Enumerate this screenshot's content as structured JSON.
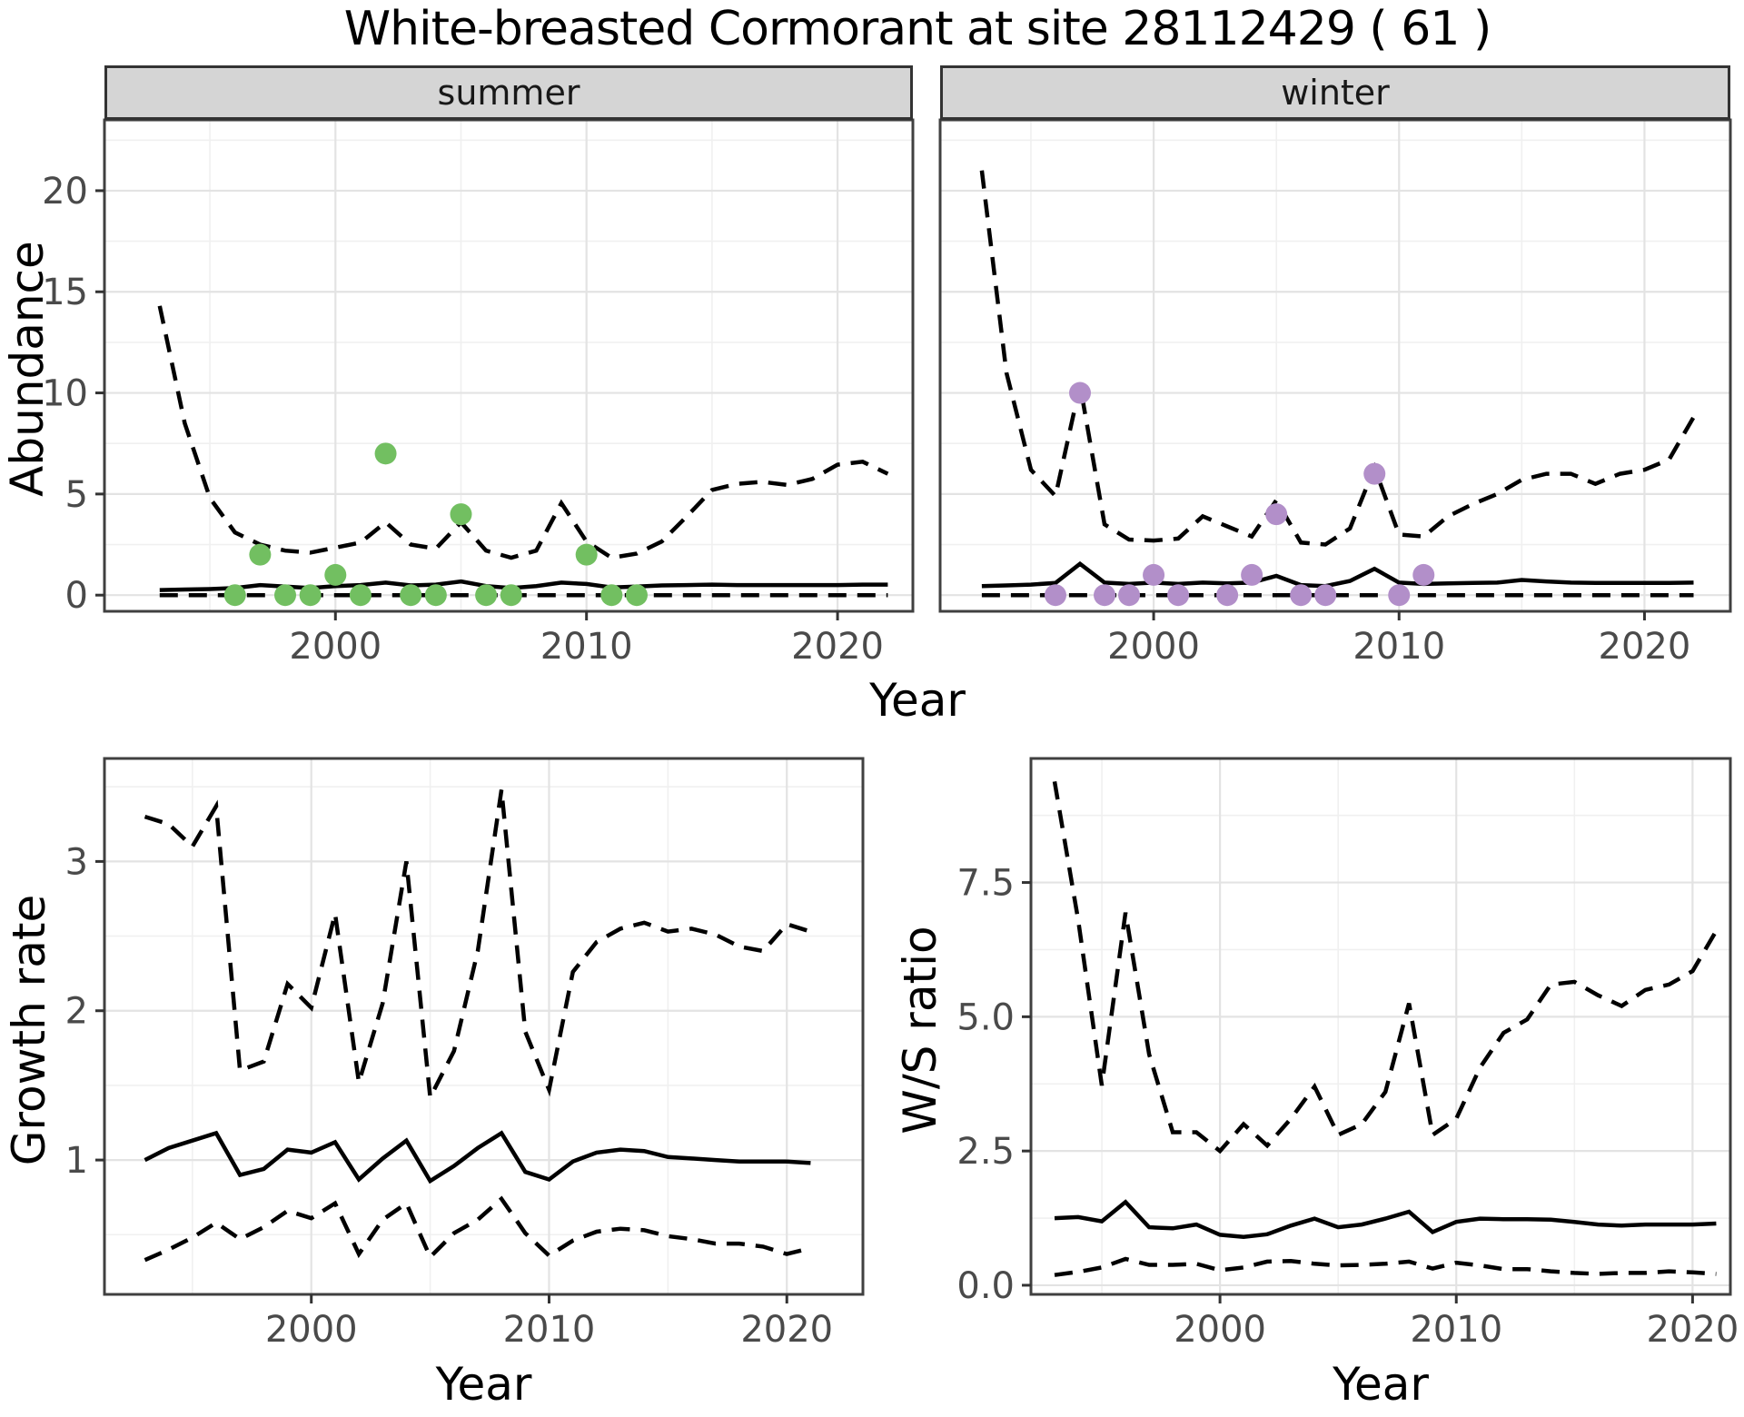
{
  "title": "White-breasted Cormorant at site 28112429 ( 61 )",
  "facets": {
    "summer": "summer",
    "winter": "winter"
  },
  "axes": {
    "top_y_label": "Abundance",
    "top_x_label": "Year",
    "bottom_left_y_label": "Growth rate",
    "bottom_left_x_label": "Year",
    "bottom_right_y_label": "W/S ratio",
    "bottom_right_x_label": "Year"
  },
  "colors": {
    "summer_points": "#72bf61",
    "winter_points": "#b28fc9",
    "line": "#000000",
    "strip_bg": "#d5d5d5",
    "grid_major": "#e3e3e3",
    "grid_minor": "#f0f0f0",
    "tick_label": "#4a4a4a",
    "panel_border": "#404040"
  },
  "chart_data": [
    {
      "id": "summer-abundance",
      "type": "line",
      "facet_label": "summer",
      "title": "Abundance - summer facet",
      "xlabel": "Year",
      "ylabel": "Abundance",
      "grid": "on",
      "legend": "none",
      "x": [
        1993,
        1994,
        1995,
        1996,
        1997,
        1998,
        1999,
        2000,
        2001,
        2002,
        2003,
        2004,
        2005,
        2006,
        2007,
        2008,
        2009,
        2010,
        2011,
        2012,
        2013,
        2014,
        2015,
        2016,
        2017,
        2018,
        2019,
        2020,
        2021,
        2022
      ],
      "series": [
        {
          "name": "upper_95ci",
          "style": "dashed",
          "values": [
            14.3,
            8.5,
            4.8,
            3.1,
            2.5,
            2.2,
            2.1,
            2.35,
            2.6,
            3.6,
            2.5,
            2.3,
            3.6,
            2.2,
            1.85,
            2.2,
            4.55,
            2.65,
            1.85,
            2.05,
            2.65,
            3.9,
            5.2,
            5.5,
            5.6,
            5.45,
            5.75,
            6.45,
            6.6,
            6.0
          ]
        },
        {
          "name": "median",
          "style": "solid",
          "values": [
            0.25,
            0.28,
            0.3,
            0.35,
            0.5,
            0.42,
            0.35,
            0.45,
            0.5,
            0.62,
            0.48,
            0.52,
            0.68,
            0.45,
            0.35,
            0.45,
            0.62,
            0.55,
            0.38,
            0.42,
            0.48,
            0.5,
            0.52,
            0.5,
            0.5,
            0.5,
            0.5,
            0.5,
            0.52,
            0.52
          ]
        },
        {
          "name": "lower_95ci",
          "style": "dashed",
          "values": [
            0,
            0,
            0,
            0,
            0,
            0,
            0,
            0,
            0,
            0,
            0,
            0,
            0,
            0,
            0,
            0,
            0,
            0,
            0,
            0,
            0,
            0,
            0,
            0,
            0,
            0,
            0,
            0,
            0,
            0
          ]
        }
      ],
      "points": {
        "name": "summer observed counts",
        "x": [
          1996,
          1997,
          1998,
          1999,
          2000,
          2001,
          2002,
          2003,
          2004,
          2005,
          2006,
          2007,
          2010,
          2011,
          2012
        ],
        "y": [
          0,
          2,
          0,
          0,
          1,
          0,
          7,
          0,
          0,
          4,
          0,
          0,
          2,
          0,
          0
        ],
        "color_key": "summer_points"
      },
      "xlim": [
        1990.8,
        2023.0
      ],
      "ylim": [
        -0.8,
        23.5
      ],
      "xticks": {
        "values": [
          2000,
          2010,
          2020
        ],
        "labels": [
          "2000",
          "2010",
          "2020"
        ]
      },
      "yticks": {
        "values": [
          0,
          5,
          10,
          15,
          20
        ],
        "labels": [
          "0",
          "5",
          "10",
          "15",
          "20"
        ]
      },
      "x_minor": [
        1995,
        2005,
        2015
      ],
      "y_minor": [
        2.5,
        7.5,
        12.5,
        17.5,
        22.5
      ]
    },
    {
      "id": "winter-abundance",
      "type": "line",
      "facet_label": "winter",
      "title": "Abundance - winter facet",
      "xlabel": "Year",
      "ylabel": "Abundance",
      "grid": "on",
      "legend": "none",
      "x": [
        1993,
        1994,
        1995,
        1996,
        1997,
        1998,
        1999,
        2000,
        2001,
        2002,
        2003,
        2004,
        2005,
        2006,
        2007,
        2008,
        2009,
        2010,
        2011,
        2012,
        2013,
        2014,
        2015,
        2016,
        2017,
        2018,
        2019,
        2020,
        2021,
        2022
      ],
      "series": [
        {
          "name": "upper_95ci",
          "style": "dashed",
          "values": [
            21.0,
            11.0,
            6.2,
            4.9,
            10.4,
            3.5,
            2.75,
            2.7,
            2.8,
            3.9,
            3.4,
            2.9,
            4.7,
            2.6,
            2.5,
            3.3,
            6.3,
            3.0,
            2.9,
            3.9,
            4.5,
            5.0,
            5.7,
            6.0,
            6.0,
            5.5,
            6.0,
            6.2,
            6.7,
            8.8
          ]
        },
        {
          "name": "median",
          "style": "solid",
          "values": [
            0.45,
            0.48,
            0.52,
            0.6,
            1.55,
            0.62,
            0.55,
            0.62,
            0.55,
            0.62,
            0.58,
            0.62,
            0.95,
            0.5,
            0.45,
            0.7,
            1.3,
            0.62,
            0.55,
            0.58,
            0.6,
            0.62,
            0.75,
            0.68,
            0.62,
            0.6,
            0.6,
            0.6,
            0.6,
            0.62
          ]
        },
        {
          "name": "lower_95ci",
          "style": "dashed",
          "values": [
            0,
            0,
            0,
            0,
            0,
            0,
            0,
            0,
            0,
            0,
            0,
            0,
            0,
            0,
            0,
            0,
            0,
            0,
            0,
            0,
            0,
            0,
            0,
            0,
            0,
            0,
            0,
            0,
            0,
            0
          ]
        }
      ],
      "points": {
        "name": "winter observed counts",
        "x": [
          1996,
          1997,
          1998,
          1999,
          2000,
          2001,
          2003,
          2004,
          2005,
          2006,
          2007,
          2009,
          2010,
          2011
        ],
        "y": [
          0,
          10,
          0,
          0,
          1,
          0,
          0,
          1,
          4,
          0,
          0,
          6,
          0,
          1
        ],
        "color_key": "winter_points"
      },
      "xlim": [
        1991.3,
        2023.5
      ],
      "ylim": [
        -0.8,
        23.5
      ],
      "xticks": {
        "values": [
          2000,
          2010,
          2020
        ],
        "labels": [
          "2000",
          "2010",
          "2020"
        ]
      },
      "yticks": {
        "values": [],
        "labels": []
      },
      "x_minor": [
        1995,
        2005,
        2015
      ],
      "y_minor": [
        2.5,
        7.5,
        12.5,
        17.5,
        22.5
      ]
    },
    {
      "id": "growth-rate",
      "type": "line",
      "facet_label": "",
      "title": "Growth rate",
      "xlabel": "Year",
      "ylabel": "Growth rate",
      "grid": "on",
      "legend": "none",
      "x": [
        1993,
        1994,
        1995,
        1996,
        1997,
        1998,
        1999,
        2000,
        2001,
        2002,
        2003,
        2004,
        2005,
        2006,
        2007,
        2008,
        2009,
        2010,
        2011,
        2012,
        2013,
        2014,
        2015,
        2016,
        2017,
        2018,
        2019,
        2020,
        2021
      ],
      "series": [
        {
          "name": "upper_95ci",
          "style": "dashed",
          "values": [
            3.3,
            3.25,
            3.1,
            3.37,
            1.6,
            1.66,
            2.18,
            2.02,
            2.65,
            1.52,
            2.05,
            3.0,
            1.42,
            1.73,
            2.4,
            3.48,
            1.86,
            1.47,
            2.26,
            2.46,
            2.55,
            2.59,
            2.53,
            2.55,
            2.51,
            2.43,
            2.4,
            2.58,
            2.53
          ]
        },
        {
          "name": "median",
          "style": "solid",
          "values": [
            1.0,
            1.08,
            1.13,
            1.18,
            0.9,
            0.94,
            1.07,
            1.05,
            1.12,
            0.87,
            1.01,
            1.13,
            0.86,
            0.96,
            1.08,
            1.18,
            0.92,
            0.87,
            0.99,
            1.05,
            1.07,
            1.06,
            1.02,
            1.01,
            1.0,
            0.99,
            0.99,
            0.99,
            0.98
          ]
        },
        {
          "name": "lower_95ci",
          "style": "dashed",
          "values": [
            0.33,
            0.4,
            0.48,
            0.58,
            0.47,
            0.55,
            0.66,
            0.61,
            0.71,
            0.37,
            0.6,
            0.71,
            0.35,
            0.51,
            0.6,
            0.74,
            0.51,
            0.36,
            0.46,
            0.52,
            0.54,
            0.53,
            0.49,
            0.47,
            0.44,
            0.44,
            0.42,
            0.37,
            0.41
          ]
        }
      ],
      "points": null,
      "xlim": [
        1991.3,
        2023.2
      ],
      "ylim": [
        0.1,
        3.69
      ],
      "xticks": {
        "values": [
          2000,
          2010,
          2020
        ],
        "labels": [
          "2000",
          "2010",
          "2020"
        ]
      },
      "yticks": {
        "values": [
          1,
          2,
          3
        ],
        "labels": [
          "1",
          "2",
          "3"
        ]
      },
      "x_minor": [
        1995,
        2005,
        2015
      ],
      "y_minor": [
        0.5,
        1.5,
        2.5,
        3.5
      ]
    },
    {
      "id": "ws-ratio",
      "type": "line",
      "facet_label": "",
      "title": "W/S ratio",
      "xlabel": "Year",
      "ylabel": "W/S ratio",
      "grid": "on",
      "legend": "none",
      "x": [
        1993,
        1994,
        1995,
        1996,
        1997,
        1998,
        1999,
        2000,
        2001,
        2002,
        2003,
        2004,
        2005,
        2006,
        2007,
        2008,
        2009,
        2010,
        2011,
        2012,
        2013,
        2014,
        2015,
        2016,
        2017,
        2018,
        2019,
        2020,
        2021
      ],
      "series": [
        {
          "name": "upper_95ci",
          "style": "dashed",
          "values": [
            9.38,
            6.8,
            3.72,
            6.94,
            4.3,
            2.85,
            2.85,
            2.5,
            3.0,
            2.6,
            3.1,
            3.7,
            2.8,
            3.0,
            3.6,
            5.25,
            2.8,
            3.1,
            4.05,
            4.7,
            4.95,
            5.6,
            5.65,
            5.4,
            5.2,
            5.5,
            5.6,
            5.85,
            6.6
          ]
        },
        {
          "name": "median",
          "style": "solid",
          "values": [
            1.25,
            1.27,
            1.19,
            1.55,
            1.08,
            1.06,
            1.13,
            0.94,
            0.9,
            0.95,
            1.11,
            1.24,
            1.08,
            1.13,
            1.24,
            1.37,
            0.99,
            1.18,
            1.24,
            1.23,
            1.23,
            1.22,
            1.18,
            1.13,
            1.11,
            1.13,
            1.13,
            1.13,
            1.15
          ]
        },
        {
          "name": "lower_95ci",
          "style": "dashed",
          "values": [
            0.19,
            0.25,
            0.33,
            0.49,
            0.38,
            0.38,
            0.4,
            0.28,
            0.33,
            0.44,
            0.45,
            0.4,
            0.37,
            0.38,
            0.4,
            0.44,
            0.31,
            0.42,
            0.37,
            0.3,
            0.3,
            0.26,
            0.23,
            0.21,
            0.23,
            0.23,
            0.26,
            0.24,
            0.21
          ]
        }
      ],
      "points": null,
      "xlim": [
        1992.0,
        2021.6
      ],
      "ylim": [
        -0.17,
        9.81
      ],
      "xticks": {
        "values": [
          2000,
          2010,
          2020
        ],
        "labels": [
          "2000",
          "2010",
          "2020"
        ]
      },
      "yticks": {
        "values": [
          0,
          2.5,
          5,
          7.5
        ],
        "labels": [
          "0.0",
          "2.5",
          "5.0",
          "7.5"
        ]
      },
      "x_minor": [
        1995,
        2005,
        2015
      ],
      "y_minor": [
        1.25,
        3.75,
        6.25,
        8.75
      ]
    }
  ]
}
